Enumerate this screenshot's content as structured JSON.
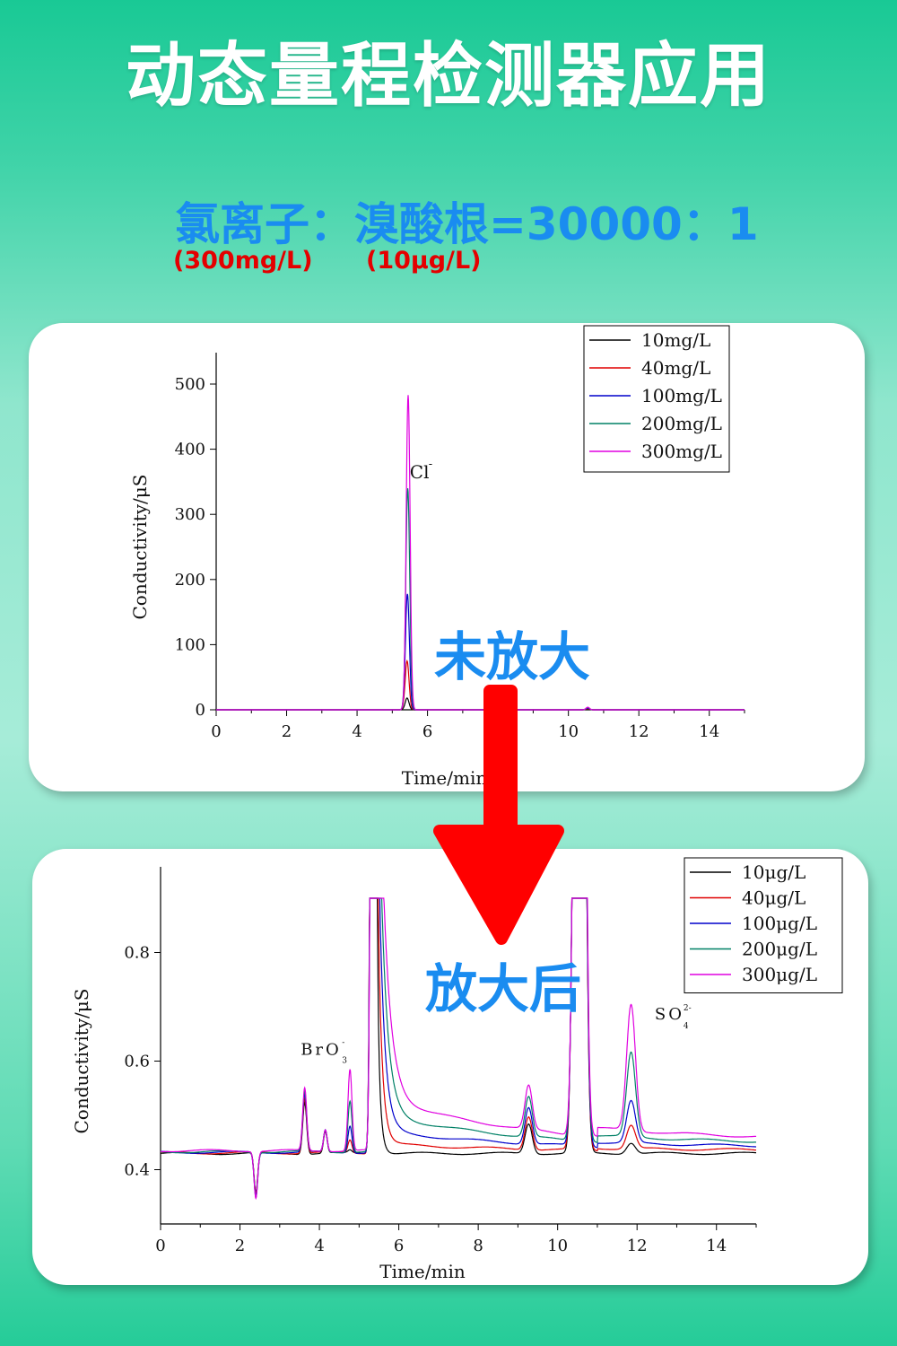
{
  "title": "动态量程检测器应用",
  "ratio_text": "氯离子：溴酸根=30000：1",
  "conc_left": "(300mg/L)",
  "conc_right": "(10μg/L)",
  "label_before": "未放大",
  "label_after": "放大后",
  "colors": {
    "series": [
      "#000000",
      "#e00000",
      "#0000cc",
      "#008066",
      "#e000e0"
    ],
    "arrow": "#ff0000",
    "label_blue": "#1a8cf0"
  },
  "chart_data": [
    {
      "type": "line",
      "xlabel": "Time/min",
      "ylabel": "Conductivity/μS",
      "xlim": [
        0,
        15
      ],
      "ylim": [
        0,
        500
      ],
      "xticks": [
        0,
        2,
        4,
        6,
        8,
        10,
        12,
        14
      ],
      "yticks": [
        0,
        100,
        200,
        300,
        400,
        500
      ],
      "legend_position": "top-right",
      "annotations": [
        {
          "text": "Cl",
          "sup": "-",
          "x": 5.75,
          "y": 430
        }
      ],
      "series": [
        {
          "name": "10mg/L",
          "peaks": [
            {
              "x": 5.42,
              "h": 18
            }
          ]
        },
        {
          "name": "40mg/L",
          "peaks": [
            {
              "x": 5.42,
              "h": 75
            }
          ]
        },
        {
          "name": "100mg/L",
          "peaks": [
            {
              "x": 5.43,
              "h": 178
            }
          ]
        },
        {
          "name": "200mg/L",
          "peaks": [
            {
              "x": 5.44,
              "h": 340
            }
          ]
        },
        {
          "name": "300mg/L",
          "peaks": [
            {
              "x": 5.45,
              "h": 483
            }
          ]
        }
      ]
    },
    {
      "type": "line",
      "xlabel": "Time/min",
      "ylabel": "Conductivity/μS",
      "xlim": [
        0,
        15
      ],
      "ylim": [
        0.3,
        0.9
      ],
      "xticks": [
        0,
        2,
        4,
        6,
        8,
        10,
        12,
        14
      ],
      "yticks": [
        0.4,
        0.6,
        0.8
      ],
      "legend_position": "top-right",
      "annotations": [
        {
          "text": "BrO",
          "sub": "3",
          "sup": "-",
          "x": 3.8,
          "y": 0.62
        },
        {
          "text": "SO",
          "sub": "4",
          "sup": "2-",
          "x": 12.4,
          "y": 0.68
        }
      ],
      "series": [
        {
          "name": "10μg/L",
          "baseline": 0.43,
          "bro3": 0.435,
          "so4": 0.45,
          "tail": 0.0
        },
        {
          "name": "40μg/L",
          "baseline": 0.431,
          "bro3": 0.455,
          "so4": 0.478,
          "tail": 0.015
        },
        {
          "name": "100μg/L",
          "baseline": 0.432,
          "bro3": 0.482,
          "so4": 0.517,
          "tail": 0.035
        },
        {
          "name": "200μg/L",
          "baseline": 0.433,
          "bro3": 0.528,
          "so4": 0.6,
          "tail": 0.06
        },
        {
          "name": "300μg/L",
          "baseline": 0.435,
          "bro3": 0.585,
          "so4": 0.683,
          "tail": 0.085
        }
      ]
    }
  ]
}
